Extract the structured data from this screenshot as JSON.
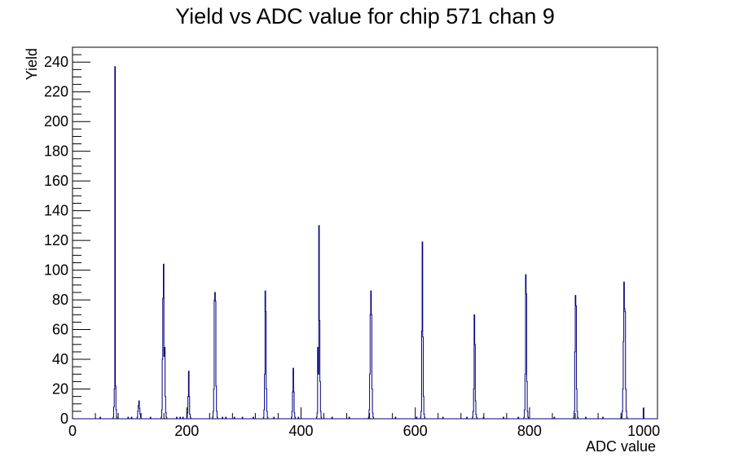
{
  "chart_data": {
    "type": "histogram",
    "title": "Yield vs ADC value for chip 571 chan 9",
    "xlabel": "ADC value",
    "ylabel": "Yield",
    "xlim": [
      0,
      1024
    ],
    "ylim": [
      0,
      250
    ],
    "xticks": [
      0,
      200,
      400,
      600,
      800,
      1000
    ],
    "yticks": [
      0,
      20,
      40,
      60,
      80,
      100,
      120,
      140,
      160,
      180,
      200,
      220,
      240
    ],
    "line_color": "#00007f",
    "grid": false,
    "legend": "none",
    "peaks": [
      {
        "center": 74,
        "bins": {
          "71": 1,
          "72": 8,
          "73": 20,
          "74": 237,
          "75": 22,
          "76": 6,
          "77": 1
        }
      },
      {
        "center": 116,
        "bins": {
          "113": 1,
          "114": 5,
          "115": 9,
          "116": 12,
          "117": 7,
          "118": 3,
          "119": 1
        }
      },
      {
        "center": 159,
        "bins": {
          "155": 1,
          "156": 6,
          "157": 40,
          "158": 81,
          "159": 104,
          "160": 42,
          "161": 48,
          "162": 15,
          "163": 4,
          "164": 1
        }
      },
      {
        "center": 204,
        "bins": {
          "200": 1,
          "201": 4,
          "202": 15,
          "203": 32,
          "204": 15,
          "205": 3,
          "206": 1
        }
      },
      {
        "center": 250,
        "bins": {
          "245": 1,
          "246": 5,
          "247": 20,
          "248": 80,
          "249": 85,
          "250": 79,
          "251": 22,
          "252": 5,
          "253": 1
        }
      },
      {
        "center": 338,
        "bins": {
          "334": 1,
          "335": 6,
          "336": 30,
          "337": 86,
          "338": 72,
          "339": 20,
          "340": 5,
          "341": 1
        }
      },
      {
        "center": 386,
        "bins": {
          "383": 1,
          "384": 5,
          "385": 18,
          "386": 34,
          "387": 18,
          "388": 4,
          "389": 1
        }
      },
      {
        "center": 431,
        "bins": {
          "427": 1,
          "428": 4,
          "429": 48,
          "430": 30,
          "431": 130,
          "432": 66,
          "433": 25,
          "434": 5,
          "435": 1
        }
      },
      {
        "center": 523,
        "bins": {
          "518": 1,
          "519": 6,
          "520": 30,
          "521": 70,
          "522": 86,
          "523": 70,
          "524": 20,
          "525": 4,
          "526": 1
        }
      },
      {
        "center": 613,
        "bins": {
          "609": 1,
          "610": 5,
          "611": 59,
          "612": 119,
          "613": 55,
          "614": 15,
          "615": 3,
          "616": 1
        }
      },
      {
        "center": 705,
        "bins": {
          "700": 1,
          "701": 5,
          "702": 20,
          "703": 70,
          "704": 50,
          "705": 12,
          "706": 3,
          "707": 1
        }
      },
      {
        "center": 795,
        "bins": {
          "790": 1,
          "791": 6,
          "792": 30,
          "793": 97,
          "794": 84,
          "795": 25,
          "796": 5,
          "797": 1
        }
      },
      {
        "center": 882,
        "bins": {
          "877": 1,
          "878": 5,
          "879": 45,
          "880": 83,
          "881": 76,
          "882": 20,
          "883": 5,
          "884": 1
        }
      },
      {
        "center": 966,
        "bins": {
          "961": 1,
          "962": 5,
          "963": 20,
          "964": 52,
          "965": 92,
          "966": 74,
          "967": 72,
          "968": 20,
          "969": 5,
          "970": 1
        }
      }
    ],
    "isolated_counts": {
      "48": 1,
      "97": 1,
      "103": 1,
      "136": 1,
      "182": 1,
      "188": 1,
      "193": 1,
      "262": 1,
      "268": 1,
      "283": 1,
      "297": 1,
      "316": 1,
      "352": 1,
      "395": 1,
      "454": 1,
      "484": 1,
      "565": 1,
      "602": 1,
      "648": 1,
      "690": 1,
      "719": 1,
      "754": 1,
      "780": 1,
      "843": 1,
      "898": 1,
      "928": 1,
      "999": 7
    }
  }
}
